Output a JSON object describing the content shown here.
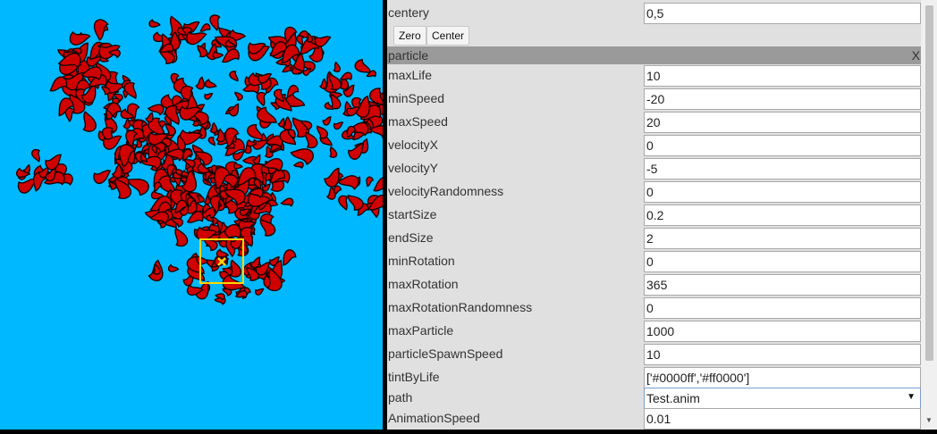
{
  "viewport": {
    "background_color": "#00b8ff",
    "particle_color": "#d00000",
    "emitter_box_color": "#ffd700"
  },
  "panel": {
    "top_row": {
      "label": "centery",
      "value": "0,5"
    },
    "buttons": {
      "zero": "Zero",
      "center": "Center"
    },
    "section": {
      "title": "particle",
      "close": "X"
    },
    "fields": [
      {
        "label": "maxLife",
        "value": "10"
      },
      {
        "label": "minSpeed",
        "value": "-20"
      },
      {
        "label": "maxSpeed",
        "value": "20"
      },
      {
        "label": "velocityX",
        "value": "0"
      },
      {
        "label": "velocityY",
        "value": "-5"
      },
      {
        "label": "velocityRandomness",
        "value": "0"
      },
      {
        "label": "startSize",
        "value": "0.2"
      },
      {
        "label": "endSize",
        "value": "2"
      },
      {
        "label": "minRotation",
        "value": "0"
      },
      {
        "label": "maxRotation",
        "value": "365"
      },
      {
        "label": "maxRotationRandomness",
        "value": "0"
      },
      {
        "label": "maxParticle",
        "value": "1000"
      },
      {
        "label": "particleSpawnSpeed",
        "value": "10"
      },
      {
        "label": "tintByLife",
        "value": "['#0000ff','#ff0000']"
      }
    ],
    "path": {
      "label": "path",
      "value": "Test.anim"
    },
    "animation_speed": {
      "label": "AnimationSpeed",
      "value": "0.01"
    }
  },
  "icons": {
    "dropdown": "chevron-down-icon",
    "scroll_down": "scroll-down-arrow-icon"
  }
}
